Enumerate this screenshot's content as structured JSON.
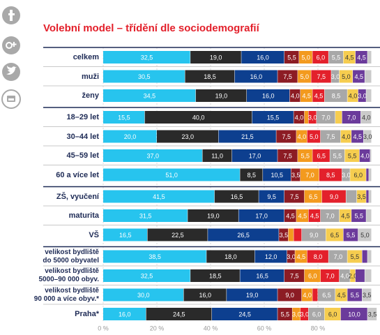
{
  "chart_data": {
    "type": "stacked-bar-horizontal",
    "title": "Volební model – třídění dle sociodemografií",
    "categories": [
      "celkem",
      "muži",
      "ženy",
      "18–29 let",
      "30–44 let",
      "45–59 let",
      "60 a více let",
      "ZŠ, vyučení",
      "maturita",
      "VŠ",
      "velikost bydliště\ndo 5000 obyvatel",
      "velikost bydliště\n5000–90 000 obyv.",
      "velikost bydliště\n90 000 a více obyv.*",
      "Praha*"
    ],
    "xlim": [
      0,
      100
    ],
    "xticks": [
      {
        "value": 0,
        "label": "0 %"
      },
      {
        "value": 20,
        "label": "20 %"
      },
      {
        "value": 40,
        "label": "40 %"
      },
      {
        "value": 60,
        "label": "60 %"
      },
      {
        "value": 80,
        "label": "80 %"
      }
    ],
    "series": [
      {
        "color": "#27c4ee",
        "values": [
          32.5,
          30.5,
          34.5,
          15.5,
          20,
          37,
          51,
          41.5,
          31.5,
          16.5,
          38.5,
          32.5,
          30,
          16
        ],
        "value_labels": [
          "32,5",
          "30,5",
          "34,5",
          "15,5",
          "20,0",
          "37,0",
          "51,0",
          "41,5",
          "31,5",
          "16,5",
          "38,5",
          "32,5",
          "30,0",
          "16,0"
        ]
      },
      {
        "color": "#2a2a2a",
        "values": [
          19,
          18.5,
          19,
          40,
          23,
          11,
          8.5,
          16.5,
          19,
          22.5,
          18,
          18.5,
          16,
          24.5
        ],
        "value_labels": [
          "19,0",
          "18,5",
          "19,0",
          "40,0",
          "23,0",
          "11,0",
          "8,5",
          "16,5",
          "19,0",
          "22,5",
          "18,0",
          "18,5",
          "16,0",
          "24,5"
        ]
      },
      {
        "color": "#0d3f8f",
        "values": [
          16,
          16,
          16,
          15.5,
          21.5,
          17,
          10.5,
          9.5,
          17,
          26.5,
          12,
          16.5,
          19,
          24.5
        ],
        "value_labels": [
          "16,0",
          "16,0",
          "16,0",
          "15,5",
          "21,5",
          "17,0",
          "10,5",
          "9,5",
          "17,0",
          "26,5",
          "12,0",
          "16,5",
          "19,0",
          "24,5"
        ]
      },
      {
        "color": "#8c1c24",
        "values": [
          5.5,
          7.5,
          4,
          4,
          7.5,
          7.5,
          3.5,
          7.5,
          4.5,
          3.5,
          3,
          7.5,
          9,
          5.5
        ],
        "value_labels": [
          "5,5",
          "7,5",
          "4,0",
          "4,0",
          "7,5",
          "7,5",
          "3,5",
          "7,5",
          "4,5",
          "3,5",
          "3,0",
          "7,5",
          "9,0",
          "5,5"
        ]
      },
      {
        "color": "#f39a1e",
        "values": [
          5,
          5,
          4.5,
          1.5,
          4,
          5.5,
          7,
          6.5,
          4.5,
          2,
          4.5,
          6,
          4,
          3
        ],
        "value_labels": [
          "5,0",
          "5,0",
          "4,5",
          null,
          "4,0",
          "5,5",
          "7,0",
          "6,5",
          "4,5",
          null,
          "4,5",
          "6,0",
          "4,0",
          "3,0"
        ]
      },
      {
        "color": "#e3202b",
        "values": [
          6,
          7.5,
          4.5,
          3,
          5,
          6.5,
          8.5,
          9,
          4.5,
          3,
          8,
          7,
          2,
          3
        ],
        "value_labels": [
          "6,0",
          "7,5",
          "4,5",
          "3,0",
          "5,0",
          "6,5",
          "8,5",
          "9,0",
          "4,5",
          null,
          "8,0",
          "7,0",
          null,
          "3,0"
        ]
      },
      {
        "color": "#a8a8a8",
        "values": [
          5.5,
          3,
          8.5,
          7,
          7.5,
          5.5,
          3,
          4,
          7,
          9,
          7,
          4,
          6.5,
          6
        ],
        "value_labels": [
          "5,5",
          "3,0",
          "8,5",
          "7,0",
          "7,5",
          "5,5",
          "3,0",
          null,
          "7,0",
          "9,0",
          "7,0",
          "4,0",
          "6,5",
          "6,0"
        ]
      },
      {
        "color": "#f6cd4f",
        "values": [
          4.5,
          5,
          4,
          2.5,
          4,
          5.5,
          6,
          3.5,
          4.5,
          6.5,
          5.5,
          2,
          4.5,
          6
        ],
        "value_labels": [
          "4,5",
          "5,0",
          "4,0",
          null,
          "4,0",
          "5,5",
          "6,0",
          "3,5",
          "4,5",
          "6,5",
          "5,5",
          "2,0",
          "4,5",
          "6,0"
        ]
      },
      {
        "color": "#6b3b9b",
        "values": [
          4.5,
          4.5,
          3,
          7,
          4.5,
          4,
          1,
          1,
          5.5,
          5.5,
          2,
          3.5,
          5.5,
          10
        ],
        "value_labels": [
          "4,5",
          "4,5",
          "3,0",
          "7,0",
          "4,5",
          "4,0",
          null,
          null,
          "5,5",
          "5,5",
          null,
          null,
          "5,5",
          "10,0"
        ]
      },
      {
        "color": "#cacaca",
        "values": [
          1.5,
          2.5,
          2,
          4,
          3,
          0.5,
          1,
          1,
          2,
          5,
          1.5,
          2.5,
          3.5,
          3.5
        ],
        "value_labels": [
          null,
          null,
          null,
          "4,0",
          "3,0",
          null,
          null,
          null,
          null,
          "5,0",
          null,
          null,
          "3,5",
          "3,5"
        ]
      }
    ],
    "title_color": "#e3202b"
  }
}
